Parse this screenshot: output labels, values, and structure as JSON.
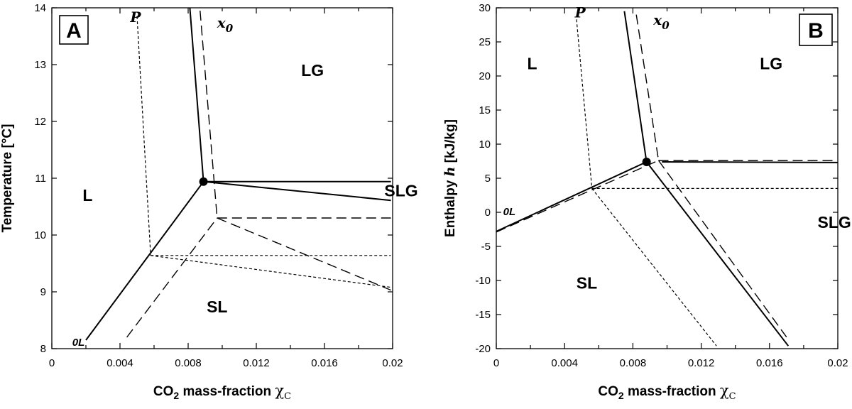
{
  "chart_data": [
    {
      "type": "line",
      "panel": "A",
      "xlabel": "CO2 mass-fraction χC",
      "xlabel_parts": {
        "pre": "CO",
        "sub": "2",
        "post": " mass-fraction ",
        "symbol": "χ",
        "symbol_sub": "C"
      },
      "ylabel": "Temperature [°C]",
      "xlim": [
        0,
        0.02
      ],
      "ylim": [
        8,
        14
      ],
      "xticks": [
        0,
        0.004,
        0.008,
        0.012,
        0.016,
        0.02
      ],
      "xtick_labels": [
        "0",
        "0.004",
        "0.008",
        "0.012",
        "0.016",
        "0.02"
      ],
      "yticks": [
        8,
        9,
        10,
        11,
        12,
        13,
        14
      ],
      "ytick_labels": [
        "8",
        "9",
        "10",
        "11",
        "12",
        "13",
        "14"
      ],
      "x_minor_step": 0.002,
      "grid": false,
      "point": {
        "x": 0.0089,
        "y": 10.94
      },
      "series": [
        {
          "name": "solid-0L",
          "style": "solid",
          "x": [
            0.002,
            0.0089
          ],
          "y": [
            8.15,
            10.94
          ]
        },
        {
          "name": "solid-x0",
          "style": "solid",
          "x": [
            0.0081,
            0.0089
          ],
          "y": [
            14.0,
            10.94
          ]
        },
        {
          "name": "solid-horizontal",
          "style": "solid",
          "x": [
            0.0089,
            0.0199
          ],
          "y": [
            10.94,
            10.94
          ]
        },
        {
          "name": "solid-SLG",
          "style": "solid",
          "x": [
            0.0089,
            0.0199
          ],
          "y": [
            10.94,
            10.61
          ]
        },
        {
          "name": "dashed-x0",
          "style": "dashed",
          "x": [
            0.0087,
            0.0097
          ],
          "y": [
            13.95,
            10.3
          ]
        },
        {
          "name": "dashed-SL",
          "style": "dashed",
          "x": [
            0.0044,
            0.0097
          ],
          "y": [
            8.2,
            10.3
          ]
        },
        {
          "name": "dashed-horizontal",
          "style": "dashed",
          "x": [
            0.0097,
            0.0199
          ],
          "y": [
            10.3,
            10.3
          ]
        },
        {
          "name": "dashed-SLG",
          "style": "dashed",
          "x": [
            0.0097,
            0.0199
          ],
          "y": [
            10.3,
            9.03
          ]
        },
        {
          "name": "dotted-P",
          "style": "dotted",
          "x": [
            0.005,
            0.0058
          ],
          "y": [
            13.85,
            9.64
          ]
        },
        {
          "name": "dotted-horizontal",
          "style": "dotted",
          "x": [
            0.0058,
            0.0199
          ],
          "y": [
            9.64,
            9.64
          ]
        },
        {
          "name": "dotted-SLG",
          "style": "dotted",
          "x": [
            0.0058,
            0.0199
          ],
          "y": [
            9.64,
            9.08
          ]
        }
      ],
      "annotations": [
        {
          "text": "L",
          "kind": "region",
          "x": 0.0021,
          "y": 10.6
        },
        {
          "text": "LG",
          "kind": "region",
          "x": 0.0153,
          "y": 12.8
        },
        {
          "text": "SLG",
          "kind": "region",
          "x": 0.0205,
          "y": 10.68
        },
        {
          "text": "SL",
          "kind": "region",
          "x": 0.0097,
          "y": 8.64
        },
        {
          "text": "P",
          "kind": "curve",
          "x": 0.0046,
          "y": 13.75
        },
        {
          "text": "x",
          "sub": "0",
          "kind": "curve",
          "x": 0.0097,
          "y": 13.65
        },
        {
          "text": "0L",
          "kind": "ol",
          "x": 0.0012,
          "y": 8.05
        }
      ]
    },
    {
      "type": "line",
      "panel": "B",
      "xlabel": "CO2 mass-fraction χC",
      "xlabel_parts": {
        "pre": "CO",
        "sub": "2",
        "post": " mass-fraction ",
        "symbol": "χ",
        "symbol_sub": "C"
      },
      "ylabel": "Enthalpy  h   [kJ/kg]",
      "ylabel_parts": {
        "pre": "Enthalpy  ",
        "symbol": "h",
        "post": "   [kJ/kg]"
      },
      "xlim": [
        0,
        0.02
      ],
      "ylim": [
        -20,
        30
      ],
      "xticks": [
        0,
        0.004,
        0.008,
        0.012,
        0.016,
        0.02
      ],
      "xtick_labels": [
        "0",
        "0.004",
        "0.008",
        "0.012",
        "0.016",
        "0.02"
      ],
      "yticks": [
        -20,
        -15,
        -10,
        -5,
        0,
        5,
        10,
        15,
        20,
        25,
        30
      ],
      "ytick_labels": [
        "-20",
        "-15",
        "-10",
        "-5",
        "0",
        "5",
        "10",
        "15",
        "20",
        "25",
        "30"
      ],
      "x_minor_step": 0.002,
      "grid": false,
      "point": {
        "x": 0.0088,
        "y": 7.4
      },
      "series": [
        {
          "name": "solid-0L",
          "style": "solid",
          "x": [
            0,
            0.0088
          ],
          "y": [
            -2.8,
            7.4
          ]
        },
        {
          "name": "solid-x0",
          "style": "solid",
          "x": [
            0.0075,
            0.0088
          ],
          "y": [
            29.5,
            7.4
          ]
        },
        {
          "name": "solid-horizontal",
          "style": "solid",
          "x": [
            0.0097,
            0.02
          ],
          "y": [
            7.4,
            7.3
          ]
        },
        {
          "name": "solid-SL",
          "style": "solid",
          "x": [
            0.0088,
            0.0171
          ],
          "y": [
            7.4,
            -19.6
          ]
        },
        {
          "name": "dashed-x0",
          "style": "dashed",
          "x": [
            0.0082,
            0.0095
          ],
          "y": [
            29.0,
            7.6
          ]
        },
        {
          "name": "dashed-0L",
          "style": "dashed",
          "x": [
            0,
            0.0095
          ],
          "y": [
            -2.9,
            7.6
          ]
        },
        {
          "name": "dashed-horizontal",
          "style": "dashed",
          "x": [
            0.0095,
            0.02
          ],
          "y": [
            7.6,
            7.6
          ]
        },
        {
          "name": "dashed-SL",
          "style": "dashed",
          "x": [
            0.0095,
            0.017
          ],
          "y": [
            7.6,
            -18.3
          ]
        },
        {
          "name": "dotted-P",
          "style": "dotted",
          "x": [
            0.0047,
            0.0056
          ],
          "y": [
            28.3,
            3.5
          ]
        },
        {
          "name": "dotted-horizontal",
          "style": "dotted",
          "x": [
            0.0056,
            0.02
          ],
          "y": [
            3.5,
            3.5
          ]
        },
        {
          "name": "dotted-SL",
          "style": "dotted",
          "x": [
            0.0056,
            0.0129
          ],
          "y": [
            3.5,
            -19.6
          ]
        }
      ],
      "annotations": [
        {
          "text": "L",
          "kind": "region",
          "x": 0.0021,
          "y": 21.0
        },
        {
          "text": "LG",
          "kind": "region",
          "x": 0.0161,
          "y": 21.0
        },
        {
          "text": "SLG",
          "kind": "region",
          "x": 0.0198,
          "y": -2.3
        },
        {
          "text": "SL",
          "kind": "region",
          "x": 0.0053,
          "y": -11.2
        },
        {
          "text": "P",
          "kind": "curve",
          "x": 0.0046,
          "y": 28.6
        },
        {
          "text": "x",
          "sub": "0",
          "kind": "curve",
          "x": 0.0092,
          "y": 27.5
        },
        {
          "text": "0L",
          "kind": "ol",
          "x": 0.0004,
          "y": -0.4
        }
      ]
    }
  ]
}
